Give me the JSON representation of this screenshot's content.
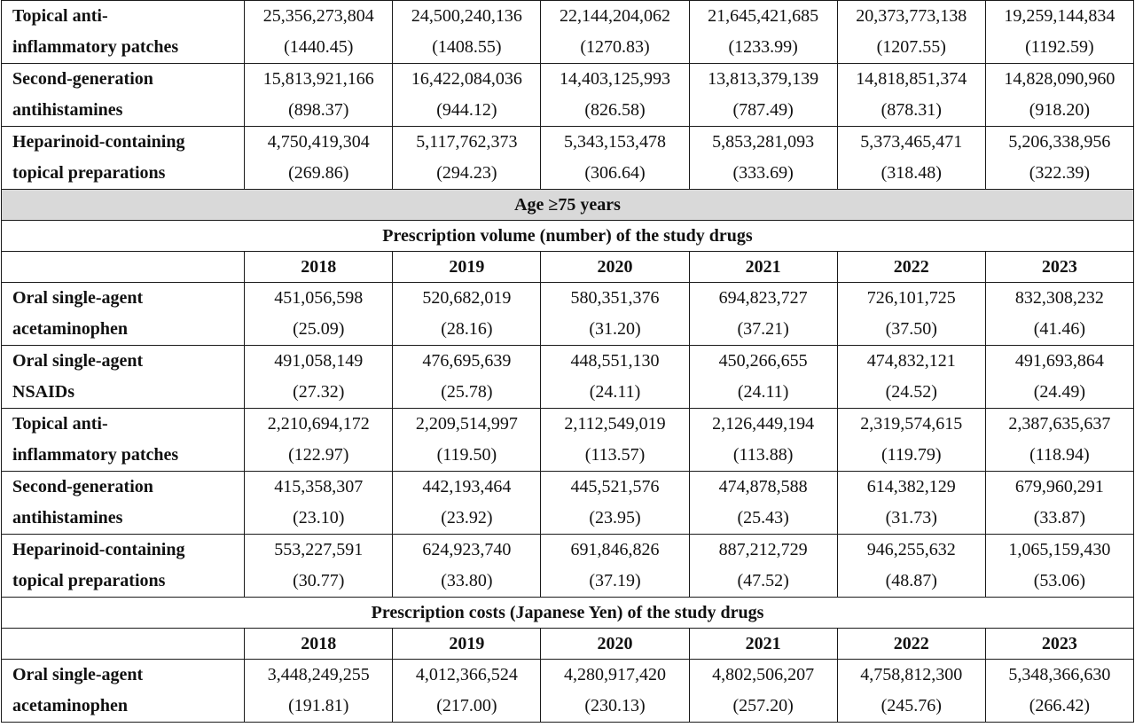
{
  "years": [
    "2018",
    "2019",
    "2020",
    "2021",
    "2022",
    "2023"
  ],
  "block_top": {
    "rows": [
      {
        "drug_line1": "Topical anti-",
        "drug_line2": "inflammatory patches",
        "values": [
          "25,356,273,804",
          "24,500,240,136",
          "22,144,204,062",
          "21,645,421,685",
          "20,373,773,138",
          "19,259,144,834"
        ],
        "rates": [
          "(1440.45)",
          "(1408.55)",
          "(1270.83)",
          "(1233.99)",
          "(1207.55)",
          "(1192.59)"
        ]
      },
      {
        "drug_line1": "Second-generation",
        "drug_line2": "antihistamines",
        "values": [
          "15,813,921,166",
          "16,422,084,036",
          "14,403,125,993",
          "13,813,379,139",
          "14,818,851,374",
          "14,828,090,960"
        ],
        "rates": [
          "(898.37)",
          "(944.12)",
          "(826.58)",
          "(787.49)",
          "(878.31)",
          "(918.20)"
        ]
      },
      {
        "drug_line1": "Heparinoid-containing",
        "drug_line2": "topical preparations",
        "values": [
          "4,750,419,304",
          "5,117,762,373",
          "5,343,153,478",
          "5,853,281,093",
          "5,373,465,471",
          "5,206,338,956"
        ],
        "rates": [
          "(269.86)",
          "(294.23)",
          "(306.64)",
          "(333.69)",
          "(318.48)",
          "(322.39)"
        ]
      }
    ]
  },
  "age_header": "Age ≥75 years",
  "volume_section": {
    "title": "Prescription volume (number) of the study drugs",
    "rows": [
      {
        "drug_line1": "Oral single-agent",
        "drug_line2": "acetaminophen",
        "values": [
          "451,056,598",
          "520,682,019",
          "580,351,376",
          "694,823,727",
          "726,101,725",
          "832,308,232"
        ],
        "rates": [
          "(25.09)",
          "(28.16)",
          "(31.20)",
          "(37.21)",
          "(37.50)",
          "(41.46)"
        ]
      },
      {
        "drug_line1": "Oral single-agent",
        "drug_line2": "NSAIDs",
        "values": [
          "491,058,149",
          "476,695,639",
          "448,551,130",
          "450,266,655",
          "474,832,121",
          "491,693,864"
        ],
        "rates": [
          "(27.32)",
          "(25.78)",
          "(24.11)",
          "(24.11)",
          "(24.52)",
          "(24.49)"
        ]
      },
      {
        "drug_line1": "Topical anti-",
        "drug_line2": "inflammatory patches",
        "values": [
          "2,210,694,172",
          "2,209,514,997",
          "2,112,549,019",
          "2,126,449,194",
          "2,319,574,615",
          "2,387,635,637"
        ],
        "rates": [
          "(122.97)",
          "(119.50)",
          "(113.57)",
          "(113.88)",
          "(119.79)",
          "(118.94)"
        ]
      },
      {
        "drug_line1": "Second-generation",
        "drug_line2": "antihistamines",
        "values": [
          "415,358,307",
          "442,193,464",
          "445,521,576",
          "474,878,588",
          "614,382,129",
          "679,960,291"
        ],
        "rates": [
          "(23.10)",
          "(23.92)",
          "(23.95)",
          "(25.43)",
          "(31.73)",
          "(33.87)"
        ]
      },
      {
        "drug_line1": "Heparinoid-containing",
        "drug_line2": "topical preparations",
        "values": [
          "553,227,591",
          "624,923,740",
          "691,846,826",
          "887,212,729",
          "946,255,632",
          "1,065,159,430"
        ],
        "rates": [
          "(30.77)",
          "(33.80)",
          "(37.19)",
          "(47.52)",
          "(48.87)",
          "(53.06)"
        ]
      }
    ]
  },
  "cost_section": {
    "title": "Prescription costs (Japanese Yen) of the study drugs",
    "rows": [
      {
        "drug_line1": "Oral single-agent",
        "drug_line2": "acetaminophen",
        "values": [
          "3,448,249,255",
          "4,012,366,524",
          "4,280,917,420",
          "4,802,506,207",
          "4,758,812,300",
          "5,348,366,630"
        ],
        "rates": [
          "(191.81)",
          "(217.00)",
          "(230.13)",
          "(257.20)",
          "(245.76)",
          "(266.42)"
        ]
      }
    ]
  }
}
